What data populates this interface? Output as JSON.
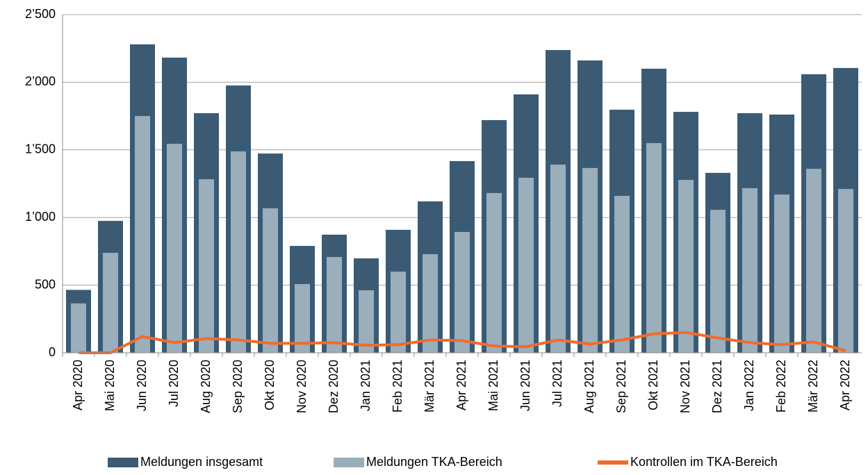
{
  "chart_data": {
    "type": "bar",
    "categories": [
      "Apr 2020",
      "Mai 2020",
      "Jun 2020",
      "Jul 2020",
      "Aug 2020",
      "Sep 2020",
      "Okt 2020",
      "Nov 2020",
      "Dez 2020",
      "Jan 2021",
      "Feb 2021",
      "Mär 2021",
      "Apr 2021",
      "Mai 2021",
      "Jun 2021",
      "Jul 2021",
      "Aug 2021",
      "Sep 2021",
      "Okt 2021",
      "Nov 2021",
      "Dez 2021",
      "Jan 2022",
      "Feb 2022",
      "Mär 2022",
      "Apr 2022"
    ],
    "series": [
      {
        "name": "Meldungen insgesamt",
        "type": "bar",
        "color": "#3b5b75",
        "values": [
          465,
          975,
          2280,
          2182,
          1771,
          1976,
          1473,
          790,
          873,
          698,
          909,
          1119,
          1417,
          1720,
          1910,
          2238,
          2161,
          1797,
          2100,
          1781,
          1330,
          1771,
          1761,
          2059,
          2105
        ]
      },
      {
        "name": "Meldungen TKA-Bereich",
        "type": "bar",
        "color": "#9aaebb",
        "values": [
          365,
          739,
          1750,
          1545,
          1283,
          1489,
          1068,
          508,
          708,
          462,
          600,
          729,
          893,
          1181,
          1294,
          1391,
          1366,
          1160,
          1550,
          1278,
          1057,
          1217,
          1170,
          1360,
          1211
        ]
      },
      {
        "name": "Kontrollen im TKA-Bereich",
        "type": "line",
        "color": "#f26b2a",
        "values": [
          0,
          0,
          120,
          75,
          105,
          95,
          70,
          70,
          75,
          55,
          60,
          95,
          90,
          50,
          45,
          95,
          65,
          95,
          140,
          150,
          110,
          75,
          60,
          80,
          15
        ]
      }
    ],
    "ylim": [
      0,
      2500
    ],
    "yticks": [
      0,
      500,
      {
        "value": 1000,
        "label": "1’000"
      },
      {
        "value": 1500,
        "label": "1’500"
      },
      {
        "value": 2000,
        "label": "2’000"
      },
      {
        "value": 2500,
        "label": "2’500"
      }
    ],
    "grid": true,
    "legend": "bottom"
  }
}
